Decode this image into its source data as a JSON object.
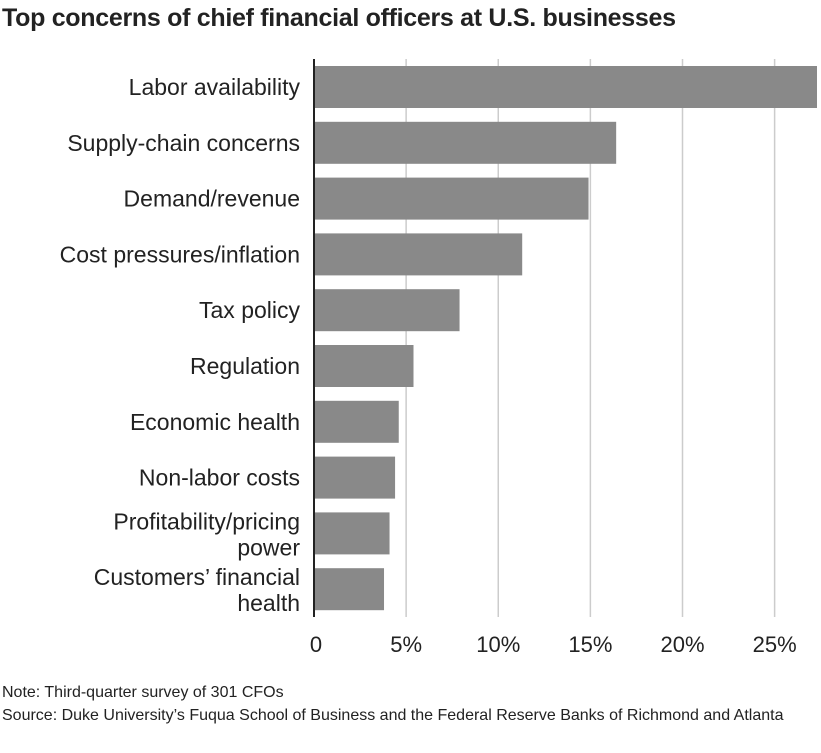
{
  "chart_data": {
    "type": "bar",
    "orientation": "horizontal",
    "title": "Top concerns of chief financial officers at U.S. businesses",
    "categories": [
      "Labor availability",
      "Supply-chain concerns",
      "Demand/revenue",
      "Cost pressures/inflation",
      "Tax policy",
      "Regulation",
      "Economic health",
      "Non-labor costs",
      "Profitability/pricing power",
      "Customers’ financial health"
    ],
    "values": [
      27.3,
      16.4,
      14.9,
      11.3,
      7.9,
      5.4,
      4.6,
      4.4,
      4.1,
      3.8
    ],
    "xlim": [
      0,
      27.3
    ],
    "xticks": [
      0,
      5,
      10,
      15,
      20,
      25
    ],
    "xtick_labels": [
      "0",
      "5%",
      "10%",
      "15%",
      "20%",
      "25%"
    ],
    "xlabel": "",
    "ylabel": "",
    "grid": "vertical",
    "bar_color": "#898989",
    "grid_color": "#cccccc"
  },
  "notes": {
    "note": "Note: Third-quarter survey of 301 CFOs",
    "source": "Source: Duke University’s Fuqua School of Business and the Federal Reserve Banks of Richmond and Atlanta"
  }
}
